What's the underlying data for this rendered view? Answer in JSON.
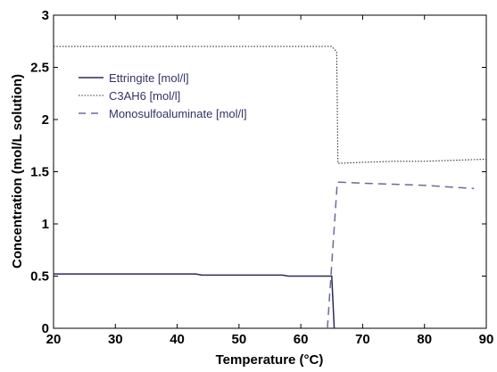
{
  "chart_data": {
    "type": "line",
    "title": "",
    "xlabel": "Temperature (°C)",
    "ylabel": "Concentration (mol/L solution)",
    "xlim": [
      20,
      90
    ],
    "ylim": [
      0,
      3
    ],
    "x_ticks": [
      20,
      30,
      40,
      50,
      60,
      70,
      80,
      90
    ],
    "y_ticks": [
      0,
      0.5,
      1,
      1.5,
      2,
      2.5,
      3
    ],
    "y_tick_labels": [
      "0",
      "0.5",
      "1",
      "1.5",
      "2",
      "2.5",
      "3"
    ],
    "grid": false,
    "legend_position": "upper-left",
    "series": [
      {
        "name": "Ettringite [mol/l]",
        "style": "solid",
        "color": "#2a2a5a",
        "x": [
          20,
          25,
          30,
          35,
          40,
          43,
          44,
          50,
          55,
          57,
          58,
          60,
          62,
          64,
          65,
          65.4
        ],
        "y": [
          0.52,
          0.52,
          0.52,
          0.52,
          0.52,
          0.52,
          0.51,
          0.51,
          0.51,
          0.51,
          0.5,
          0.5,
          0.5,
          0.5,
          0.5,
          0.0
        ]
      },
      {
        "name": "C3AH6 [mol/l]",
        "style": "dotted",
        "color": "#333333",
        "x": [
          20,
          30,
          40,
          50,
          60,
          65,
          65.8,
          66,
          70,
          75,
          80,
          85,
          90
        ],
        "y": [
          2.7,
          2.7,
          2.7,
          2.7,
          2.7,
          2.7,
          2.65,
          1.58,
          1.59,
          1.6,
          1.6,
          1.61,
          1.62
        ]
      },
      {
        "name": "Monosulfoaluminate [mol/l]",
        "style": "dashed",
        "color": "#6a6a9a",
        "x": [
          64.3,
          65.9,
          66.2,
          70,
          75,
          80,
          85,
          88
        ],
        "y": [
          0.0,
          1.4,
          1.4,
          1.39,
          1.38,
          1.37,
          1.35,
          1.34
        ]
      }
    ]
  }
}
